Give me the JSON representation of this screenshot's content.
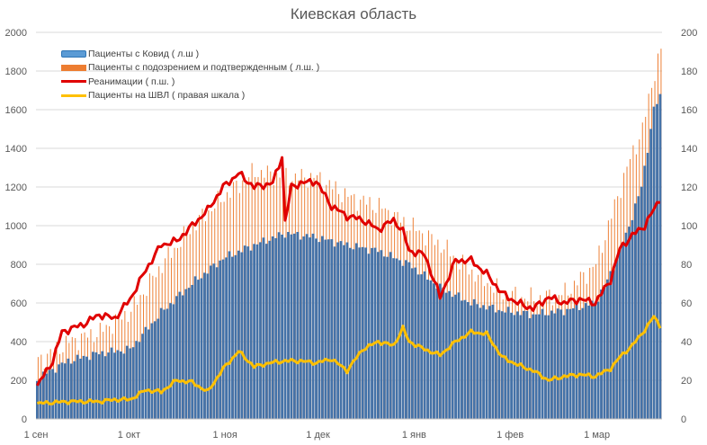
{
  "chart_data": {
    "type": "bar",
    "title": "Киевская область",
    "x_tick_labels": [
      "1 сен",
      "1 окт",
      "1 ноя",
      "1 дек",
      "1 янв",
      "1 фев",
      "1 мар"
    ],
    "x_tick_days": [
      0,
      30,
      61,
      91,
      122,
      153,
      181
    ],
    "num_days": 202,
    "y_left": {
      "min": 0,
      "max": 2000,
      "step": 200,
      "ticks": [
        "0",
        "200",
        "400",
        "600",
        "800",
        "1000",
        "1200",
        "1400",
        "1600",
        "1800",
        "2000"
      ]
    },
    "y_right": {
      "min": 0,
      "max": 200,
      "step": 20,
      "ticks": [
        "0",
        "20",
        "40",
        "60",
        "80",
        "100",
        "120",
        "140",
        "160",
        "180",
        "200"
      ]
    },
    "grid": true,
    "legend_position": "top-left",
    "series": [
      {
        "name": "Пациенты с Ковид ( л.ш )",
        "kind": "bar",
        "axis": "left",
        "color": "#4472a8",
        "keypoints": [
          [
            0,
            210
          ],
          [
            10,
            300
          ],
          [
            20,
            340
          ],
          [
            30,
            360
          ],
          [
            40,
            550
          ],
          [
            50,
            700
          ],
          [
            60,
            830
          ],
          [
            70,
            900
          ],
          [
            80,
            960
          ],
          [
            90,
            940
          ],
          [
            100,
            900
          ],
          [
            110,
            870
          ],
          [
            120,
            800
          ],
          [
            125,
            740
          ],
          [
            130,
            680
          ],
          [
            140,
            600
          ],
          [
            150,
            560
          ],
          [
            160,
            540
          ],
          [
            170,
            560
          ],
          [
            180,
            600
          ],
          [
            185,
            750
          ],
          [
            190,
            950
          ],
          [
            195,
            1200
          ],
          [
            199,
            1600
          ],
          [
            201,
            1670
          ]
        ]
      },
      {
        "name": "Пациенты с подозрением и подтвержденным ( л.ш. )",
        "kind": "bar",
        "axis": "left",
        "color": "#ed7d31",
        "keypoints": [
          [
            0,
            300
          ],
          [
            10,
            400
          ],
          [
            20,
            450
          ],
          [
            30,
            560
          ],
          [
            40,
            800
          ],
          [
            50,
            1000
          ],
          [
            60,
            1150
          ],
          [
            70,
            1280
          ],
          [
            80,
            1250
          ],
          [
            90,
            1250
          ],
          [
            100,
            1150
          ],
          [
            110,
            1100
          ],
          [
            120,
            1000
          ],
          [
            130,
            900
          ],
          [
            140,
            760
          ],
          [
            150,
            650
          ],
          [
            160,
            620
          ],
          [
            170,
            650
          ],
          [
            180,
            800
          ],
          [
            190,
            1300
          ],
          [
            195,
            1500
          ],
          [
            199,
            1800
          ],
          [
            201,
            1910
          ]
        ]
      },
      {
        "name": "Реанимации ( п.ш. )",
        "kind": "line",
        "axis": "right",
        "color": "#e00000",
        "keypoints": [
          [
            0,
            17
          ],
          [
            5,
            30
          ],
          [
            8,
            45
          ],
          [
            15,
            49
          ],
          [
            20,
            54
          ],
          [
            25,
            52
          ],
          [
            30,
            62
          ],
          [
            35,
            77
          ],
          [
            40,
            90
          ],
          [
            45,
            92
          ],
          [
            50,
            100
          ],
          [
            55,
            108
          ],
          [
            60,
            120
          ],
          [
            65,
            127
          ],
          [
            70,
            120
          ],
          [
            76,
            122
          ],
          [
            79,
            136
          ],
          [
            80,
            102
          ],
          [
            82,
            120
          ],
          [
            85,
            122
          ],
          [
            90,
            123
          ],
          [
            95,
            110
          ],
          [
            100,
            105
          ],
          [
            105,
            103
          ],
          [
            110,
            98
          ],
          [
            115,
            103
          ],
          [
            118,
            97
          ],
          [
            120,
            87
          ],
          [
            125,
            85
          ],
          [
            130,
            63
          ],
          [
            135,
            82
          ],
          [
            140,
            82
          ],
          [
            145,
            75
          ],
          [
            150,
            65
          ],
          [
            155,
            60
          ],
          [
            160,
            57
          ],
          [
            165,
            63
          ],
          [
            170,
            60
          ],
          [
            175,
            62
          ],
          [
            180,
            60
          ],
          [
            185,
            72
          ],
          [
            188,
            88
          ],
          [
            192,
            95
          ],
          [
            196,
            100
          ],
          [
            201,
            114
          ]
        ]
      },
      {
        "name": "Пациенты на ШВЛ ( правая шкала )",
        "kind": "line",
        "axis": "right",
        "color": "#ffc000",
        "keypoints": [
          [
            0,
            8
          ],
          [
            10,
            9
          ],
          [
            15,
            9
          ],
          [
            20,
            9
          ],
          [
            25,
            10
          ],
          [
            30,
            10
          ],
          [
            35,
            15
          ],
          [
            40,
            14
          ],
          [
            45,
            20
          ],
          [
            50,
            19
          ],
          [
            55,
            14
          ],
          [
            60,
            26
          ],
          [
            65,
            35
          ],
          [
            70,
            27
          ],
          [
            75,
            29
          ],
          [
            80,
            30
          ],
          [
            85,
            30
          ],
          [
            90,
            29
          ],
          [
            95,
            31
          ],
          [
            100,
            25
          ],
          [
            105,
            36
          ],
          [
            110,
            40
          ],
          [
            115,
            38
          ],
          [
            118,
            47
          ],
          [
            120,
            40
          ],
          [
            125,
            36
          ],
          [
            130,
            33
          ],
          [
            135,
            40
          ],
          [
            140,
            45
          ],
          [
            145,
            44
          ],
          [
            150,
            32
          ],
          [
            155,
            28
          ],
          [
            160,
            25
          ],
          [
            165,
            20
          ],
          [
            170,
            22
          ],
          [
            175,
            23
          ],
          [
            180,
            22
          ],
          [
            185,
            26
          ],
          [
            188,
            32
          ],
          [
            192,
            38
          ],
          [
            196,
            46
          ],
          [
            199,
            53
          ],
          [
            201,
            48
          ]
        ]
      }
    ]
  }
}
